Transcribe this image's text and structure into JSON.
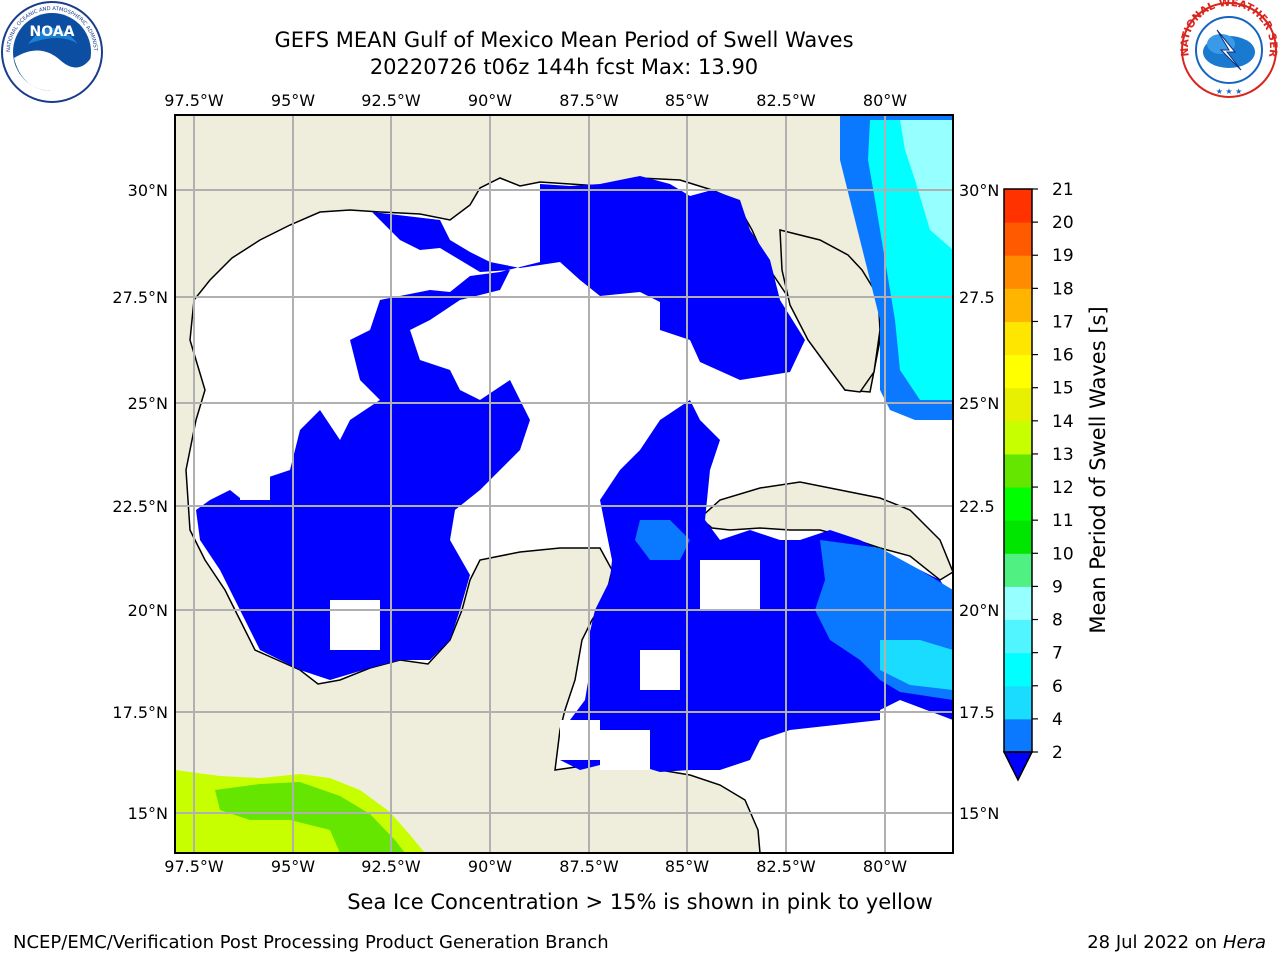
{
  "header": {
    "title_line1": "GEFS MEAN Gulf of Mexico Mean Period of Swell Waves",
    "title_line2": "20220726 t06z 144h fcst   Max: 13.90"
  },
  "logos": {
    "noaa": {
      "icon": "noaa-logo-icon",
      "text": "NOAA",
      "ring_text": "NATIONAL OCEANIC AND ATMOSPHERIC ADMINISTRATION · U.S. DEPARTMENT OF COMMERCE"
    },
    "nws": {
      "icon": "nws-logo-icon",
      "ring_text": "NATIONAL WEATHER SERVICE"
    }
  },
  "map": {
    "lon_ticks": [
      "97.5°W",
      "95°W",
      "92.5°W",
      "90°W",
      "87.5°W",
      "85°W",
      "82.5°W",
      "80°W"
    ],
    "lat_ticks_left": [
      "30°N",
      "27.5°N",
      "25°N",
      "22.5°N",
      "20°N",
      "17.5°N",
      "15°N"
    ],
    "lat_ticks_right": [
      "30°N",
      "27.5",
      "25°N",
      "22.5",
      "20°N",
      "17.5",
      "15°N"
    ],
    "colors": {
      "land": "#efeedd",
      "ocean_low": "#0000ff",
      "grid": "#b0b0b0"
    }
  },
  "colorbar": {
    "label": "Mean Period of Swell Waves [s]",
    "ticks": [
      "2",
      "4",
      "6",
      "7",
      "8",
      "9",
      "10",
      "11",
      "12",
      "13",
      "14",
      "15",
      "16",
      "17",
      "18",
      "19",
      "20",
      "21"
    ],
    "colors": [
      "#0a78ff",
      "#1adcff",
      "#00ffff",
      "#50f5ff",
      "#96ffff",
      "#50f082",
      "#00e600",
      "#00ff00",
      "#64e600",
      "#c8ff00",
      "#e6f000",
      "#ffff00",
      "#ffe600",
      "#ffb400",
      "#ff8c00",
      "#ff5a00",
      "#ff3200",
      "#ff0000"
    ],
    "under_color": "#0000ff"
  },
  "caption": "Sea Ice Concentration > 15% is shown in pink to yellow",
  "footer": {
    "left": "NCEP/EMC/Verification Post Processing Product Generation Branch",
    "right_date": "28 Jul 2022 on ",
    "right_host": "Hera"
  }
}
